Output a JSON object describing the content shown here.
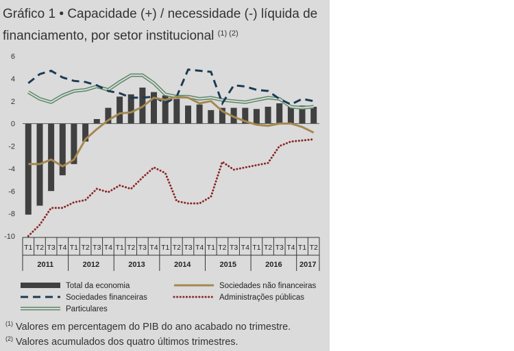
{
  "title": {
    "label": "Gráfico 1",
    "bullet": "•",
    "text": "Capacidade (+) / necessidade (-) líquida de financiamento, por setor institucional",
    "refs": "(1) (2)"
  },
  "footnotes": [
    {
      "mark": "(1)",
      "text": "Valores em percentagem do PIB do ano acabado no trimestre."
    },
    {
      "mark": "(2)",
      "text": "Valores acumulados dos quatro últimos trimestres."
    }
  ],
  "colors": {
    "background": "#dbdbdb",
    "bars": "#404040",
    "financeiras": "#1b3a52",
    "nao_financeiras": "#a5884f",
    "administracoes": "#8c2525",
    "particulares": "#5b8766"
  },
  "chart_data": {
    "type": "bar",
    "ylim": [
      -10,
      6
    ],
    "yticks": [
      6,
      4,
      2,
      0,
      -2,
      -4,
      -6,
      -8,
      -10
    ],
    "quarters": [
      "T1",
      "T2",
      "T3",
      "T4",
      "T1",
      "T2",
      "T3",
      "T4",
      "T1",
      "T2",
      "T3",
      "T4",
      "T1",
      "T2",
      "T3",
      "T4",
      "T1",
      "T2",
      "T3",
      "T4",
      "T1",
      "T2",
      "T3",
      "T4",
      "T1",
      "T2"
    ],
    "years": [
      {
        "label": "2011",
        "count": 4
      },
      {
        "label": "2012",
        "count": 4
      },
      {
        "label": "2013",
        "count": 4
      },
      {
        "label": "2014",
        "count": 4
      },
      {
        "label": "2015",
        "count": 4
      },
      {
        "label": "2016",
        "count": 4
      },
      {
        "label": "2017",
        "count": 2
      }
    ],
    "series": [
      {
        "key": "total",
        "name": "Total da economia",
        "kind": "bar",
        "values": [
          -8.1,
          -7.3,
          -6.0,
          -4.6,
          -3.6,
          -1.6,
          0.4,
          1.4,
          2.4,
          2.6,
          3.2,
          2.8,
          2.5,
          2.2,
          1.6,
          1.7,
          1.2,
          1.4,
          1.4,
          1.4,
          1.3,
          1.5,
          1.8,
          1.5,
          1.6,
          1.5
        ]
      },
      {
        "key": "financeiras",
        "name": "Sociedades financeiras",
        "kind": "dashed",
        "values": [
          3.6,
          4.4,
          4.7,
          4.1,
          3.8,
          3.7,
          3.4,
          2.9,
          2.7,
          2.3,
          2.3,
          2.4,
          1.8,
          2.4,
          4.8,
          4.7,
          4.6,
          1.8,
          3.4,
          3.3,
          3.0,
          2.9,
          2.2,
          1.7,
          2.2,
          2.0
        ]
      },
      {
        "key": "particulares",
        "name": "Particulares",
        "kind": "double",
        "values": [
          2.8,
          2.2,
          1.9,
          2.5,
          2.9,
          3.0,
          3.3,
          3.0,
          3.7,
          4.3,
          4.3,
          3.6,
          2.6,
          2.4,
          2.4,
          2.2,
          2.3,
          2.1,
          2.0,
          1.9,
          2.1,
          2.3,
          2.2,
          1.5,
          1.4,
          1.5
        ]
      },
      {
        "key": "nao_financeiras",
        "name": "Sociedades não financeiras",
        "kind": "solid",
        "values": [
          -3.6,
          -3.6,
          -3.2,
          -3.8,
          -3.2,
          -1.4,
          -0.5,
          0.3,
          0.9,
          1.0,
          1.5,
          2.3,
          2.1,
          2.4,
          2.3,
          1.8,
          2.0,
          1.1,
          0.6,
          0.2,
          -0.1,
          -0.2,
          0.0,
          0.0,
          -0.3,
          -0.8
        ]
      },
      {
        "key": "administracoes",
        "name": "Administrações públicas",
        "kind": "dotted",
        "values": [
          -10.0,
          -9.0,
          -7.5,
          -7.5,
          -7.0,
          -6.8,
          -5.8,
          -6.1,
          -5.5,
          -5.8,
          -4.8,
          -3.9,
          -4.4,
          -6.9,
          -7.1,
          -7.1,
          -6.5,
          -3.4,
          -4.1,
          -3.9,
          -3.7,
          -3.5,
          -2.0,
          -1.6,
          -1.5,
          -1.4
        ]
      }
    ],
    "legend": [
      {
        "key": "total",
        "label": "Total da economia"
      },
      {
        "key": "nao_financeiras",
        "label": "Sociedades não financeiras"
      },
      {
        "key": "financeiras",
        "label": "Sociedades financeiras"
      },
      {
        "key": "administracoes",
        "label": "Administrações públicas"
      },
      {
        "key": "particulares",
        "label": "Particulares"
      }
    ]
  }
}
